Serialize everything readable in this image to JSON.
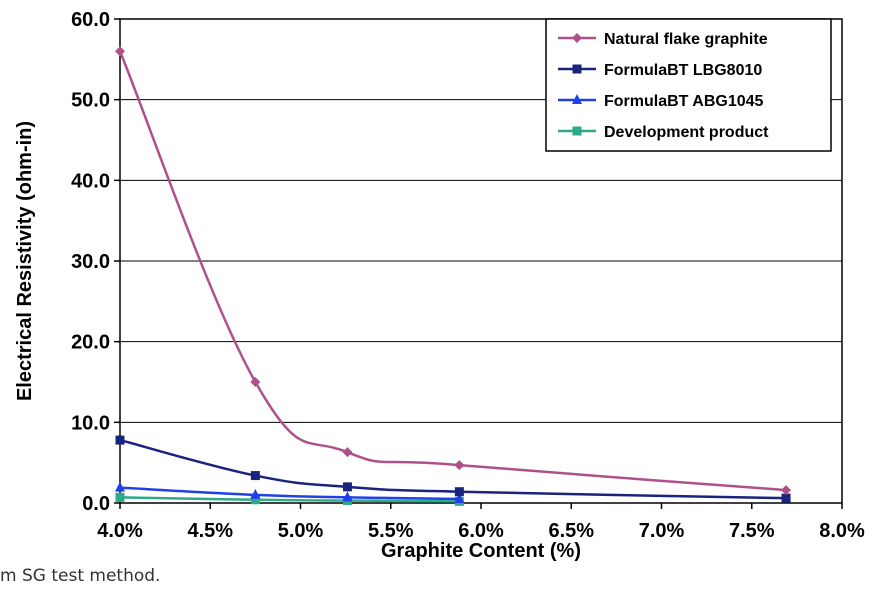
{
  "chart_data": {
    "type": "line",
    "xlabel": "Graphite Content (%)",
    "ylabel": "Electrical Resistivity (ohm-in)",
    "xlim": [
      4.0,
      8.0
    ],
    "ylim": [
      0,
      60
    ],
    "x_ticks": [
      "4.0%",
      "4.5%",
      "5.0%",
      "5.5%",
      "6.0%",
      "6.5%",
      "7.0%",
      "7.5%",
      "8.0%"
    ],
    "y_ticks": [
      "0.0",
      "10.0",
      "20.0",
      "30.0",
      "40.0",
      "50.0",
      "60.0"
    ],
    "grid": true,
    "legend_position": "top-right",
    "series": [
      {
        "name": "Natural flake graphite",
        "color": "#b0508a",
        "marker": "diamond",
        "x": [
          4.0,
          4.75,
          5.26,
          5.88,
          7.69
        ],
        "y": [
          56.0,
          15.0,
          6.3,
          4.7,
          1.6
        ]
      },
      {
        "name": "FormulaBT LBG8010",
        "color": "#1a237e",
        "marker": "square",
        "x": [
          4.0,
          4.75,
          5.26,
          5.88,
          7.69
        ],
        "y": [
          7.8,
          3.4,
          2.0,
          1.4,
          0.6
        ]
      },
      {
        "name": "FormulaBT ABG1045",
        "color": "#2040e8",
        "marker": "triangle",
        "x": [
          4.0,
          4.75,
          5.26,
          5.88
        ],
        "y": [
          1.9,
          1.0,
          0.7,
          0.5
        ]
      },
      {
        "name": "Development product",
        "color": "#2eaa8a",
        "marker": "square",
        "x": [
          4.0,
          4.75,
          5.26,
          5.88
        ],
        "y": [
          0.7,
          0.4,
          0.3,
          0.2
        ]
      }
    ]
  },
  "footnote": "m SG test method."
}
